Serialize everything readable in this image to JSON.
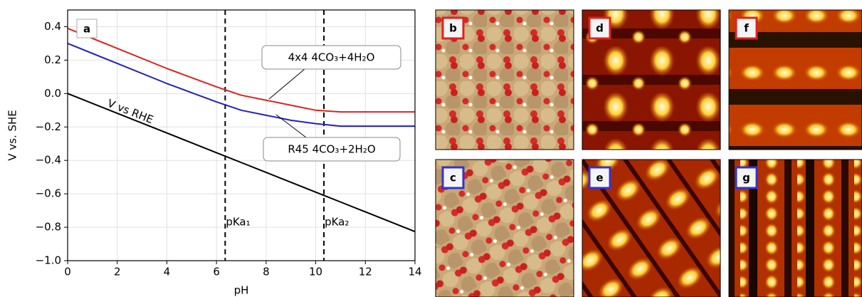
{
  "chart_data": {
    "type": "line",
    "panel_label": "a",
    "xlabel": "pH",
    "ylabel": "V vs. SHE",
    "x": [
      0,
      2,
      4,
      5,
      6,
      7,
      8,
      9,
      10,
      11,
      12,
      14
    ],
    "series": [
      {
        "name": "4x4 4CO₃+4H₂O",
        "color": "#dd2222",
        "values": [
          0.39,
          0.27,
          0.15,
          0.095,
          0.04,
          -0.01,
          -0.04,
          -0.07,
          -0.1,
          -0.11,
          -0.11,
          -0.11
        ]
      },
      {
        "name": "R45 4CO₃+2H₂O",
        "color": "#2222bb",
        "values": [
          0.3,
          0.18,
          0.06,
          0.005,
          -0.05,
          -0.1,
          -0.13,
          -0.16,
          -0.18,
          -0.195,
          -0.195,
          -0.195
        ]
      },
      {
        "name": "V vs RHE",
        "color": "#000000",
        "values": [
          0,
          -0.118,
          -0.236,
          -0.295,
          -0.354,
          -0.413,
          -0.472,
          -0.531,
          -0.59,
          -0.649,
          -0.708,
          -0.826
        ]
      }
    ],
    "vlines": [
      {
        "x": 6.35,
        "label": "pKa₁"
      },
      {
        "x": 10.33,
        "label": "pKa₂"
      }
    ],
    "xlim": [
      0,
      14
    ],
    "ylim": [
      -1.0,
      0.5
    ],
    "xticks": [
      0,
      2,
      4,
      6,
      8,
      10,
      12,
      14
    ],
    "yticks": [
      {
        "value": -1.0,
        "label": "−1.0"
      },
      {
        "value": -0.8,
        "label": "−0.8"
      },
      {
        "value": -0.6,
        "label": "−0.6"
      },
      {
        "value": -0.4,
        "label": "−0.4"
      },
      {
        "value": -0.2,
        "label": "−0.2"
      },
      {
        "value": 0.0,
        "label": "0.0"
      },
      0.2,
      0.4
    ],
    "grid": true
  },
  "image_panels": [
    "b",
    "d",
    "f",
    "c",
    "e",
    "g"
  ]
}
